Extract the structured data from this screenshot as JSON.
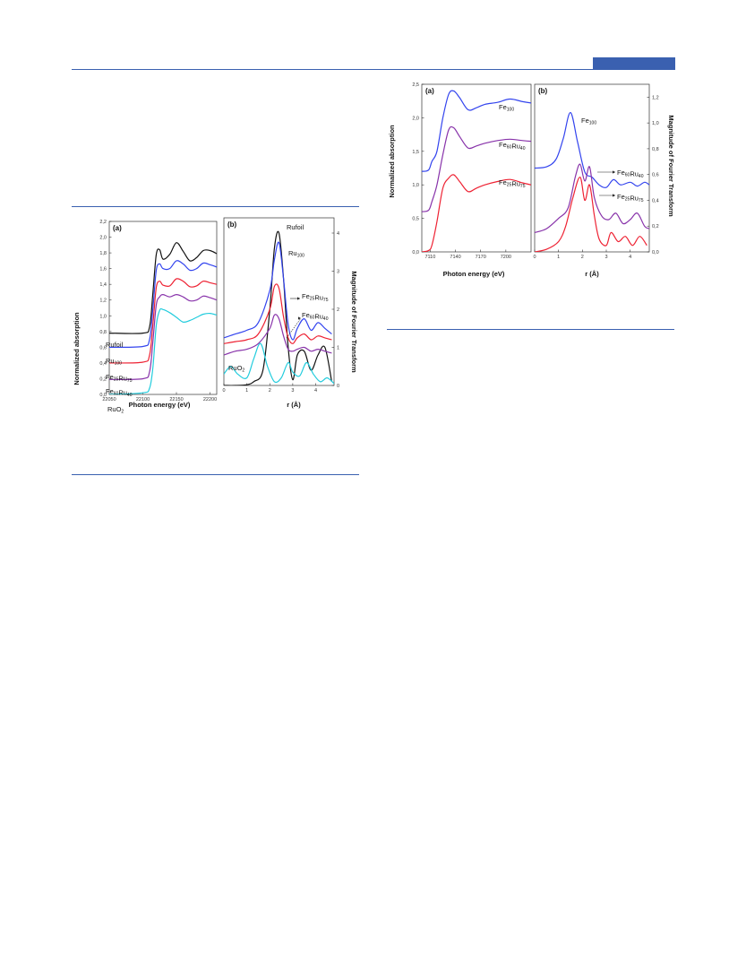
{
  "colors": {
    "rule": "#3a60b0",
    "ru_foil": "#111111",
    "ru100": "#3344ee",
    "fe25ru75": "#ee2233",
    "fe60ru40": "#8833aa",
    "ruo2": "#22ccdd",
    "fe100": "#3344ee"
  },
  "chart_data": [
    {
      "type": "line",
      "panel": "(a)",
      "xlabel": "Photon energy (eV)",
      "ylabel": "Normalized absorption",
      "xlim": [
        22050,
        22210
      ],
      "ylim": [
        0.0,
        2.2
      ],
      "xticks": [
        "22050",
        "22100",
        "22150",
        "22200"
      ],
      "yticks": [
        "0,0",
        "0,2",
        "0,4",
        "0,6",
        "0,8",
        "1,0",
        "1,2",
        "1,4",
        "1,6",
        "1,8",
        "2,0",
        "2,2"
      ],
      "series": [
        {
          "name": "Ru foil",
          "color": "#111111",
          "x": [
            22050,
            22100,
            22110,
            22115,
            22120,
            22125,
            22130,
            22140,
            22150,
            22160,
            22170,
            22180,
            22190,
            22200,
            22210
          ],
          "y": [
            0.78,
            0.78,
            0.86,
            1.3,
            1.78,
            1.84,
            1.72,
            1.78,
            1.93,
            1.82,
            1.7,
            1.74,
            1.83,
            1.83,
            1.79
          ]
        },
        {
          "name": "Ru100",
          "color": "#3344ee",
          "x": [
            22050,
            22100,
            22110,
            22115,
            22120,
            22125,
            22130,
            22140,
            22150,
            22160,
            22170,
            22180,
            22190,
            22200,
            22210
          ],
          "y": [
            0.6,
            0.61,
            0.7,
            1.1,
            1.58,
            1.66,
            1.6,
            1.6,
            1.7,
            1.66,
            1.58,
            1.6,
            1.67,
            1.65,
            1.62
          ]
        },
        {
          "name": "Fe25Ru75",
          "color": "#ee2233",
          "x": [
            22050,
            22100,
            22110,
            22115,
            22120,
            22125,
            22130,
            22140,
            22150,
            22160,
            22170,
            22180,
            22190,
            22200,
            22210
          ],
          "y": [
            0.4,
            0.41,
            0.5,
            0.9,
            1.36,
            1.44,
            1.39,
            1.38,
            1.47,
            1.44,
            1.37,
            1.38,
            1.44,
            1.42,
            1.4
          ]
        },
        {
          "name": "Fe60Ru40",
          "color": "#8833aa",
          "x": [
            22050,
            22100,
            22110,
            22115,
            22120,
            22125,
            22130,
            22140,
            22150,
            22160,
            22170,
            22180,
            22190,
            22200,
            22210
          ],
          "y": [
            0.19,
            0.2,
            0.29,
            0.68,
            1.14,
            1.24,
            1.27,
            1.24,
            1.27,
            1.24,
            1.19,
            1.2,
            1.25,
            1.23,
            1.2
          ]
        },
        {
          "name": "RuO2",
          "color": "#22ccdd",
          "x": [
            22050,
            22100,
            22110,
            22115,
            22120,
            22125,
            22130,
            22140,
            22150,
            22160,
            22170,
            22180,
            22190,
            22200,
            22210
          ],
          "y": [
            0.0,
            0.02,
            0.08,
            0.35,
            0.88,
            1.07,
            1.08,
            1.04,
            0.98,
            0.92,
            0.94,
            0.98,
            1.02,
            1.03,
            1.01
          ]
        }
      ]
    },
    {
      "type": "line",
      "panel": "(b)",
      "xlabel": "r (Å)",
      "ylabel": "Magnitude of Fourier Transform",
      "xlim": [
        0,
        4.8
      ],
      "ylim": [
        0,
        4.4
      ],
      "xticks": [
        "0",
        "1",
        "2",
        "3",
        "4"
      ],
      "yticks": [
        "0",
        "1",
        "2",
        "3",
        "4"
      ],
      "series": [
        {
          "name": "Ru foil",
          "color": "#111111",
          "x": [
            0,
            0.5,
            1.0,
            1.3,
            1.7,
            2.0,
            2.2,
            2.4,
            2.6,
            2.8,
            3.0,
            3.2,
            3.5,
            3.8,
            4.1,
            4.4,
            4.7
          ],
          "y": [
            0.0,
            0.0,
            0.02,
            0.1,
            0.4,
            2.0,
            3.6,
            4.0,
            2.8,
            1.0,
            0.15,
            0.8,
            0.9,
            0.4,
            0.8,
            1.0,
            0.1
          ]
        },
        {
          "name": "Ru100",
          "color": "#3344ee",
          "x": [
            0,
            0.5,
            1.0,
            1.5,
            2.0,
            2.2,
            2.4,
            2.6,
            2.8,
            3.0,
            3.2,
            3.5,
            3.8,
            4.1,
            4.4,
            4.7
          ],
          "y": [
            1.25,
            1.35,
            1.45,
            1.65,
            2.5,
            3.3,
            3.75,
            2.8,
            1.6,
            1.2,
            1.5,
            1.75,
            1.45,
            1.65,
            1.5,
            1.35
          ]
        },
        {
          "name": "Fe25Ru75",
          "color": "#ee2233",
          "x": [
            0,
            0.5,
            1.0,
            1.5,
            2.0,
            2.2,
            2.4,
            2.6,
            2.8,
            3.0,
            3.2,
            3.5,
            3.8,
            4.1,
            4.4,
            4.7
          ],
          "y": [
            1.1,
            1.15,
            1.2,
            1.35,
            2.0,
            2.6,
            2.55,
            1.8,
            1.25,
            1.1,
            1.25,
            1.35,
            1.2,
            1.3,
            1.25,
            1.2
          ]
        },
        {
          "name": "Fe60Ru40",
          "color": "#8833aa",
          "x": [
            0,
            0.5,
            1.0,
            1.5,
            2.0,
            2.2,
            2.4,
            2.6,
            2.8,
            3.0,
            3.2,
            3.5,
            3.8,
            4.1,
            4.4,
            4.7
          ],
          "y": [
            0.8,
            0.9,
            0.95,
            1.1,
            1.5,
            1.85,
            1.75,
            1.3,
            0.95,
            0.9,
            0.95,
            1.0,
            0.9,
            0.95,
            0.9,
            0.85
          ]
        },
        {
          "name": "RuO2",
          "color": "#22ccdd",
          "x": [
            0,
            0.3,
            0.6,
            1.0,
            1.3,
            1.6,
            1.9,
            2.2,
            2.5,
            2.8,
            3.0,
            3.3,
            3.6,
            3.9,
            4.2,
            4.5,
            4.8
          ],
          "y": [
            0.3,
            0.5,
            0.3,
            0.2,
            0.7,
            1.1,
            0.5,
            0.1,
            0.2,
            0.6,
            0.35,
            0.25,
            0.6,
            0.3,
            0.1,
            0.2,
            0.05
          ]
        }
      ]
    },
    {
      "type": "line",
      "panel": "(a)",
      "xlabel": "Photon energy (eV)",
      "ylabel": "Normalized absorption",
      "xlim": [
        7100,
        7230
      ],
      "ylim": [
        0.0,
        2.5
      ],
      "xticks": [
        "7110",
        "7140",
        "7170",
        "7200"
      ],
      "yticks": [
        "0,0",
        "0,5",
        "1,0",
        "1,5",
        "2,0",
        "2,5"
      ],
      "series": [
        {
          "name": "Fe100",
          "color": "#3344ee",
          "x": [
            7100,
            7108,
            7112,
            7118,
            7125,
            7132,
            7138,
            7145,
            7155,
            7165,
            7175,
            7190,
            7205,
            7220,
            7230
          ],
          "y": [
            1.2,
            1.22,
            1.35,
            1.5,
            2.0,
            2.35,
            2.4,
            2.3,
            2.12,
            2.15,
            2.2,
            2.23,
            2.28,
            2.24,
            2.22
          ]
        },
        {
          "name": "Fe60Ru40",
          "color": "#8833aa",
          "x": [
            7100,
            7108,
            7112,
            7118,
            7125,
            7132,
            7138,
            7145,
            7155,
            7165,
            7175,
            7190,
            7205,
            7220,
            7230
          ],
          "y": [
            0.6,
            0.62,
            0.75,
            1.0,
            1.45,
            1.82,
            1.85,
            1.72,
            1.55,
            1.58,
            1.62,
            1.66,
            1.68,
            1.66,
            1.65
          ]
        },
        {
          "name": "Fe25Ru75",
          "color": "#ee2233",
          "x": [
            7100,
            7108,
            7112,
            7118,
            7125,
            7132,
            7138,
            7145,
            7155,
            7165,
            7175,
            7190,
            7205,
            7220,
            7230
          ],
          "y": [
            0.0,
            0.02,
            0.1,
            0.45,
            0.95,
            1.1,
            1.15,
            1.05,
            0.9,
            0.95,
            1.0,
            1.05,
            1.08,
            1.03,
            1.0
          ]
        }
      ]
    },
    {
      "type": "line",
      "panel": "(b)",
      "xlabel": "r (Å)",
      "ylabel": "Magnitude of Fourier Transform",
      "xlim": [
        0,
        4.8
      ],
      "ylim": [
        0,
        1.3
      ],
      "xticks": [
        "0",
        "1",
        "2",
        "3",
        "4"
      ],
      "yticks": [
        "0,0",
        "0,2",
        "0,4",
        "0,6",
        "0,8",
        "1,0",
        "1,2"
      ],
      "series": [
        {
          "name": "Fe100",
          "color": "#3344ee",
          "x": [
            0,
            0.5,
            0.9,
            1.2,
            1.5,
            1.8,
            2.1,
            2.4,
            2.7,
            3.0,
            3.3,
            3.6,
            4.0,
            4.3,
            4.6,
            4.8
          ],
          "y": [
            0.65,
            0.66,
            0.72,
            0.88,
            1.08,
            0.85,
            0.62,
            0.58,
            0.52,
            0.5,
            0.56,
            0.52,
            0.54,
            0.51,
            0.54,
            0.52
          ]
        },
        {
          "name": "Fe60Ru40",
          "color": "#8833aa",
          "x": [
            0,
            0.5,
            1.0,
            1.4,
            1.7,
            1.9,
            2.1,
            2.3,
            2.5,
            2.8,
            3.1,
            3.4,
            3.7,
            4.0,
            4.3,
            4.6,
            4.8
          ],
          "y": [
            0.15,
            0.18,
            0.26,
            0.34,
            0.58,
            0.68,
            0.55,
            0.66,
            0.42,
            0.28,
            0.25,
            0.3,
            0.22,
            0.25,
            0.3,
            0.2,
            0.18
          ]
        },
        {
          "name": "Fe25Ru75",
          "color": "#ee2233",
          "x": [
            0,
            0.5,
            1.0,
            1.3,
            1.6,
            1.9,
            2.1,
            2.3,
            2.5,
            2.7,
            3.0,
            3.2,
            3.5,
            3.8,
            4.1,
            4.4,
            4.7
          ],
          "y": [
            0.0,
            0.02,
            0.08,
            0.2,
            0.42,
            0.58,
            0.4,
            0.52,
            0.28,
            0.1,
            0.05,
            0.15,
            0.08,
            0.12,
            0.05,
            0.12,
            0.05
          ]
        }
      ]
    }
  ]
}
